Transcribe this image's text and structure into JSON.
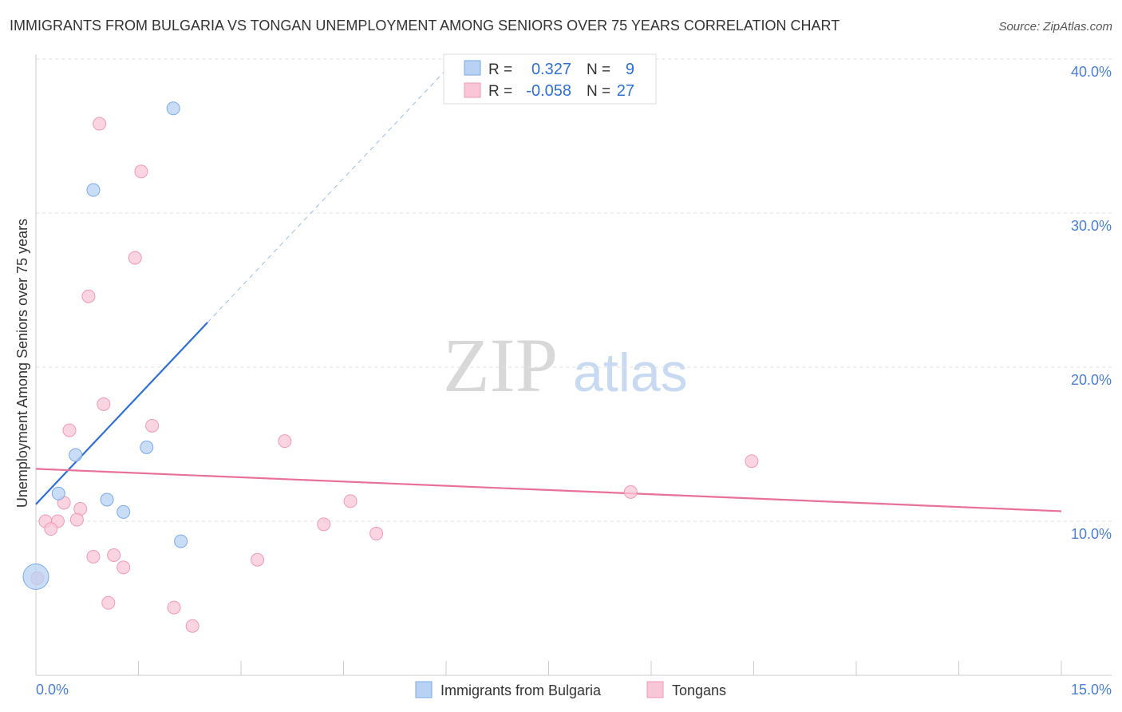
{
  "title": "IMMIGRANTS FROM BULGARIA VS TONGAN UNEMPLOYMENT AMONG SENIORS OVER 75 YEARS CORRELATION CHART",
  "source": "Source: ZipAtlas.com",
  "watermark": {
    "zip": "ZIP",
    "atlas": "atlas"
  },
  "chart_data": {
    "type": "scatter",
    "title": "IMMIGRANTS FROM BULGARIA VS TONGAN UNEMPLOYMENT AMONG SENIORS OVER 75 YEARS CORRELATION CHART",
    "xlabel": "",
    "ylabel": "Unemployment Among Seniors over 75 years",
    "xlim": [
      0,
      15
    ],
    "ylim": [
      0,
      40
    ],
    "x_tick_labels": [
      "0.0%",
      "15.0%"
    ],
    "y_ticks": [
      10,
      20,
      30,
      40
    ],
    "y_tick_labels": [
      "10.0%",
      "20.0%",
      "30.0%",
      "40.0%"
    ],
    "legend_position": "bottom",
    "series": [
      {
        "name": "Immigrants from Bulgaria",
        "color": "#7aaae8",
        "fill": "#b8d2f4",
        "R": "0.327",
        "N": "9",
        "points": [
          [
            2.01,
            36.8
          ],
          [
            0.84,
            31.5
          ],
          [
            0.58,
            14.3
          ],
          [
            1.62,
            14.8
          ],
          [
            0.33,
            11.8
          ],
          [
            1.04,
            11.4
          ],
          [
            1.28,
            10.6
          ],
          [
            2.12,
            8.7
          ],
          [
            0.0,
            6.4
          ]
        ],
        "trend": {
          "x0": 0,
          "y0": 11.1,
          "x1": 2.51,
          "y1": 22.9,
          "dash_to_x": 6.07,
          "color": "#2f6fd6"
        }
      },
      {
        "name": "Tongans",
        "color": "#f09ab5",
        "fill": "#f8c6d6",
        "R": "-0.058",
        "N": "27",
        "points": [
          [
            0.93,
            35.8
          ],
          [
            1.54,
            32.7
          ],
          [
            1.45,
            27.1
          ],
          [
            0.77,
            24.6
          ],
          [
            0.99,
            17.6
          ],
          [
            0.49,
            15.9
          ],
          [
            1.7,
            16.2
          ],
          [
            3.64,
            15.2
          ],
          [
            10.47,
            13.9
          ],
          [
            8.7,
            11.9
          ],
          [
            0.41,
            11.2
          ],
          [
            0.65,
            10.8
          ],
          [
            4.6,
            11.3
          ],
          [
            0.14,
            10.0
          ],
          [
            0.32,
            10.0
          ],
          [
            0.6,
            10.1
          ],
          [
            0.22,
            9.5
          ],
          [
            4.21,
            9.8
          ],
          [
            4.98,
            9.2
          ],
          [
            0.84,
            7.7
          ],
          [
            1.14,
            7.8
          ],
          [
            1.28,
            7.0
          ],
          [
            3.24,
            7.5
          ],
          [
            1.06,
            4.7
          ],
          [
            2.02,
            4.4
          ],
          [
            2.29,
            3.2
          ],
          [
            0.02,
            6.3
          ]
        ],
        "trend": {
          "x0": 0,
          "y0": 13.4,
          "x1": 15,
          "y1": 10.65,
          "color": "#e8709a"
        }
      }
    ]
  },
  "legend": {
    "r_label": "R =",
    "n_label": "N ="
  }
}
